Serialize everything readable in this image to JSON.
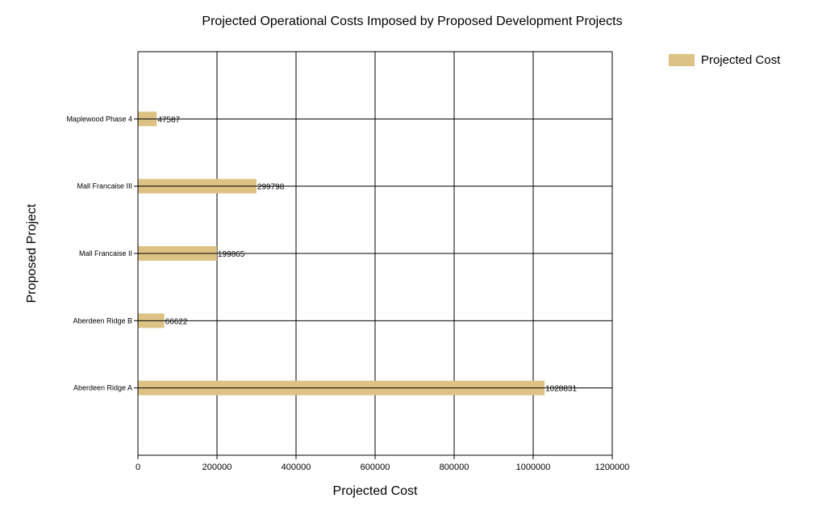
{
  "chart_data": {
    "type": "bar",
    "orientation": "horizontal",
    "title": "Projected Operational Costs Imposed by Proposed Development Projects",
    "xlabel": "Projected Cost",
    "ylabel": "Proposed Project",
    "categories": [
      "Aberdeen Ridge A",
      "Aberdeen Ridge B",
      "Mall Francaise II",
      "Mall Francaise III",
      "Maplewood Phase 4"
    ],
    "series": [
      {
        "name": "Projected Cost",
        "values": [
          1028831,
          66622,
          199865,
          299798,
          47587
        ],
        "color": "#dcc284"
      }
    ],
    "data_labels": [
      "1028831",
      "66622",
      "199865",
      "299798",
      "47587"
    ],
    "xlim": [
      0,
      1200000
    ],
    "xticks": [
      0,
      200000,
      400000,
      600000,
      800000,
      1000000,
      1200000
    ],
    "xtick_labels": [
      "0",
      "200000",
      "400000",
      "600000",
      "800000",
      "1000000",
      "1200000"
    ],
    "grid": true,
    "legend": "top-right"
  }
}
